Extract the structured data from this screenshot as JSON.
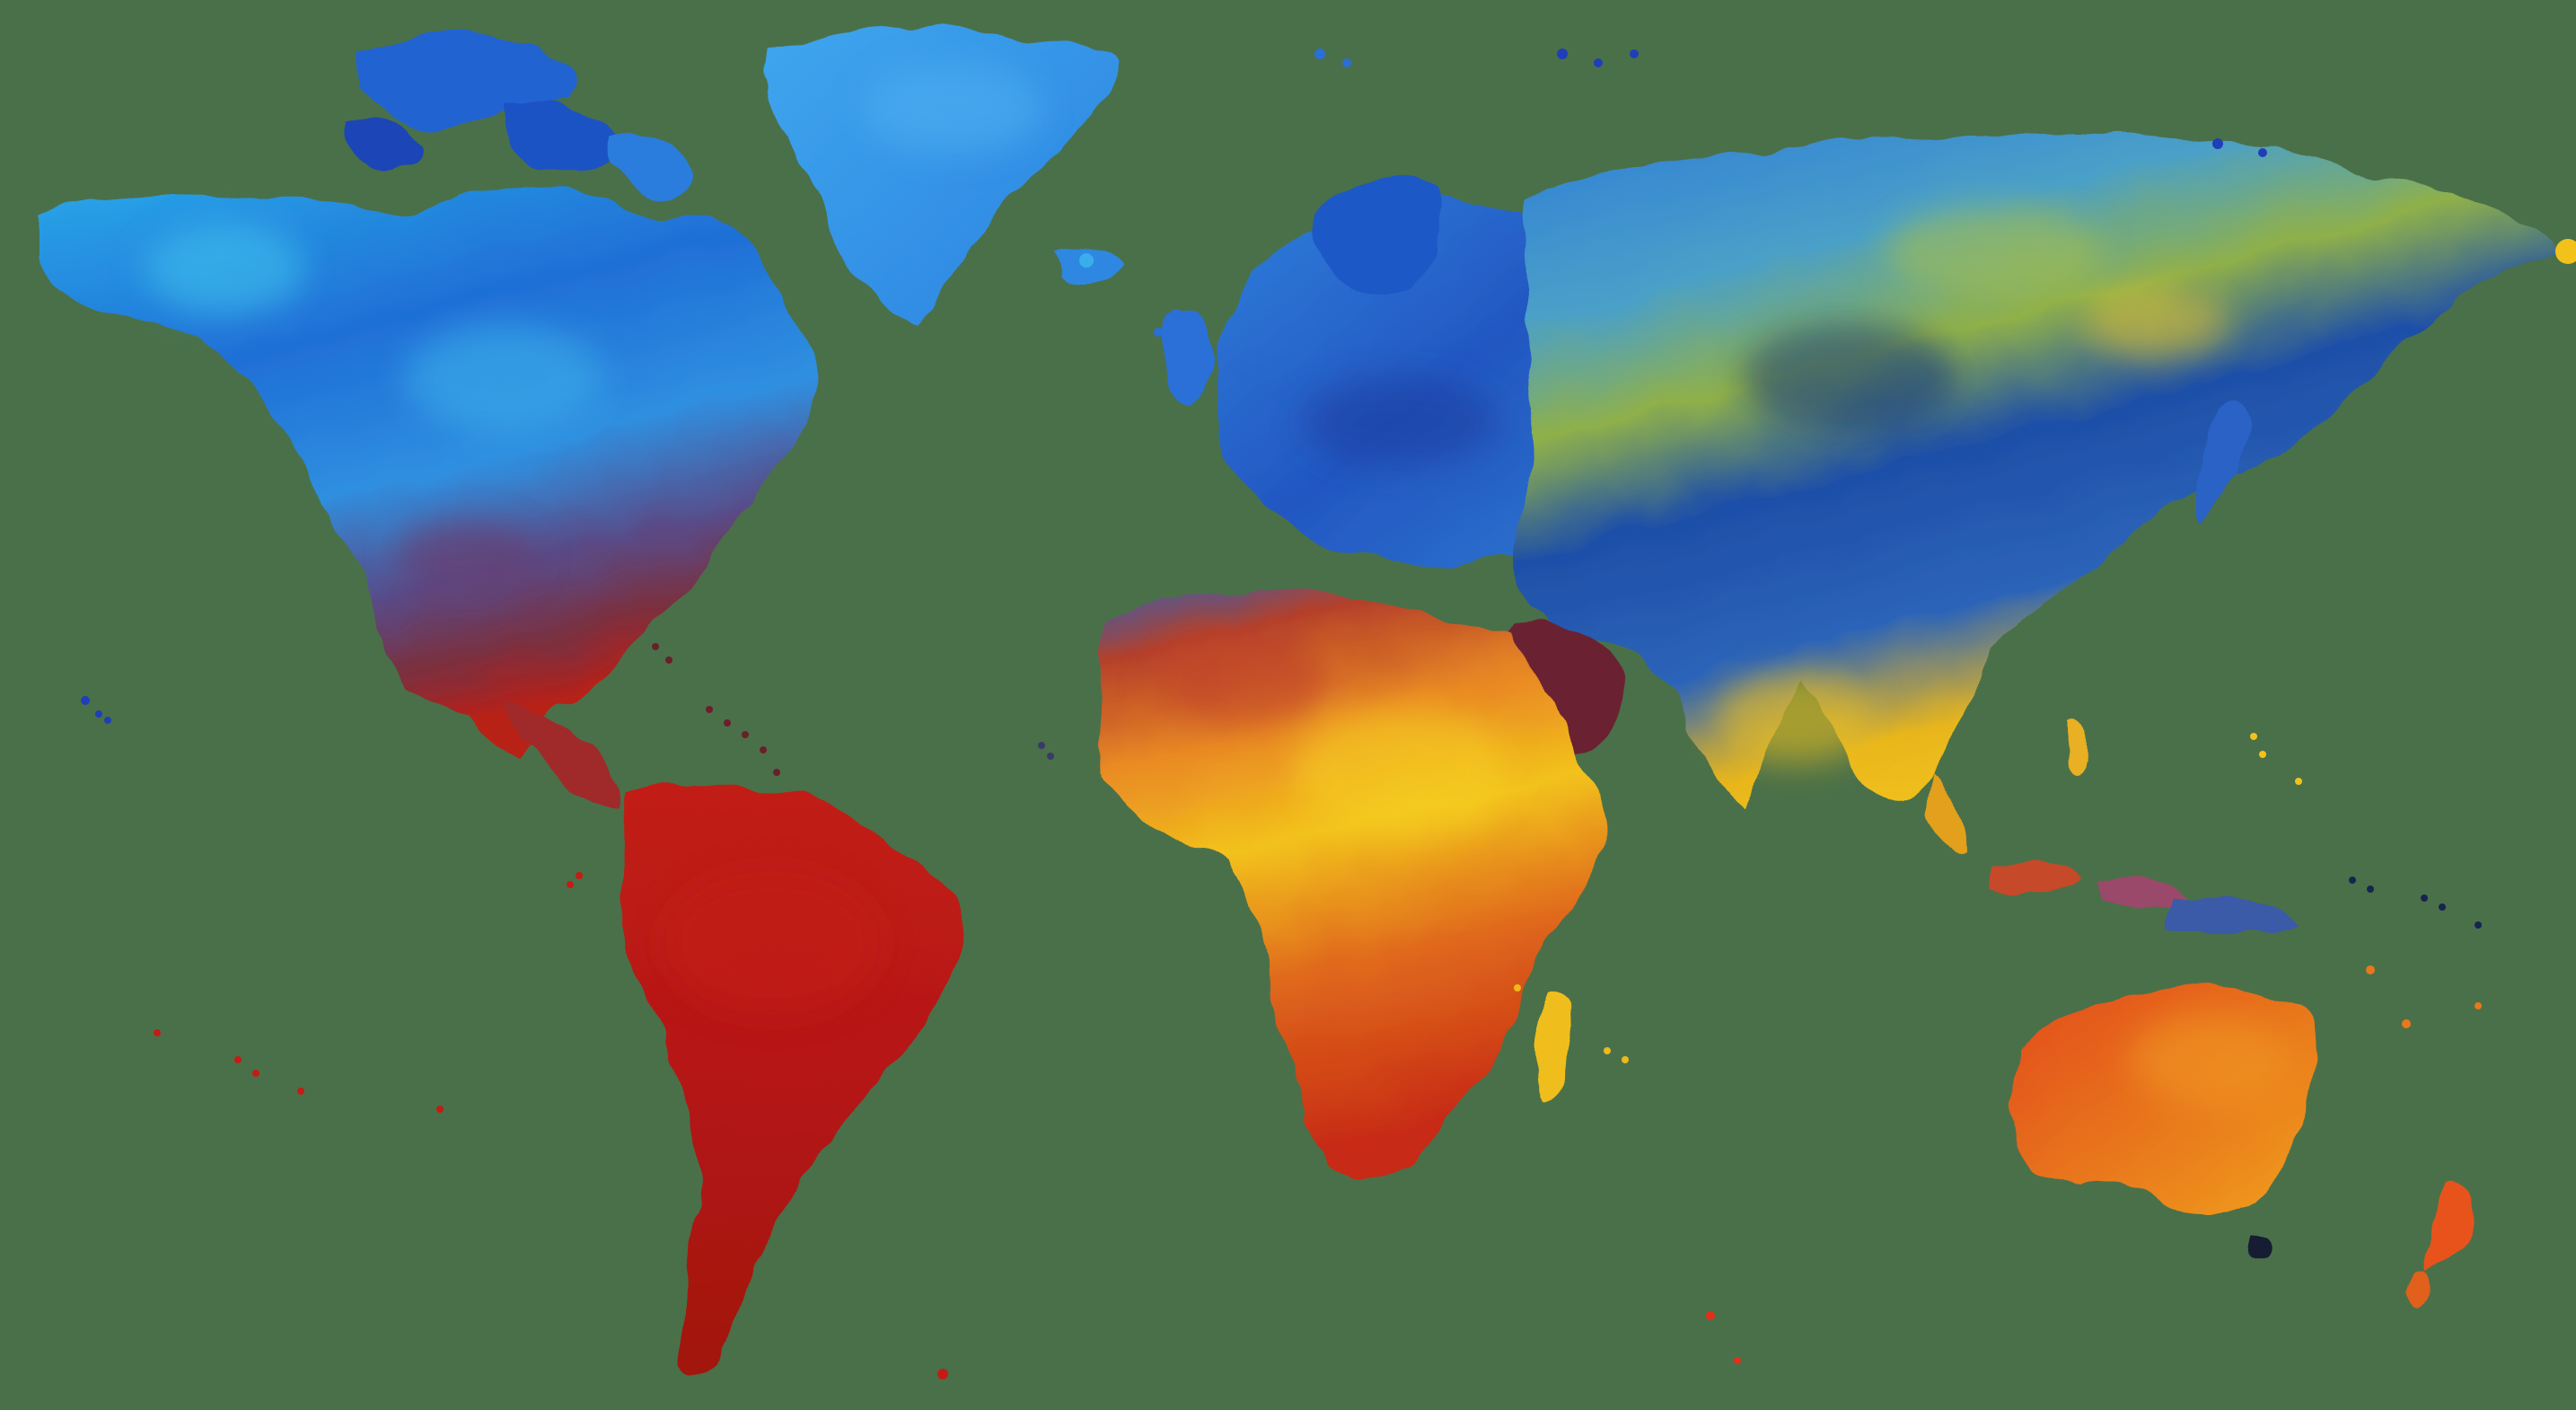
{
  "image": {
    "kind": "painted-world-map",
    "background_color": "#4a7049",
    "palette": {
      "deep_blue": "#1e3fb8",
      "sky_blue": "#2f8fe0",
      "cyan": "#3cc6e6",
      "teal": "#2e8f8a",
      "olive": "#9fb84a",
      "yellow": "#f2c21b",
      "orange": "#e6781c",
      "red": "#b81a14",
      "maroon": "#6a1f2a",
      "navy": "#15254f"
    }
  }
}
